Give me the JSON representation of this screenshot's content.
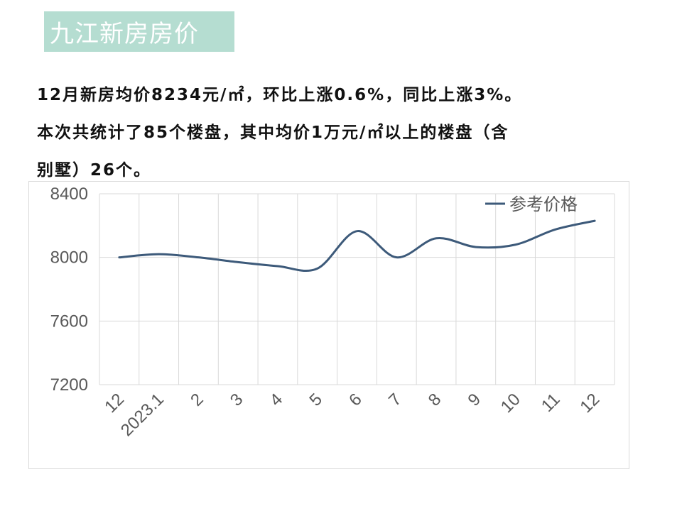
{
  "header": {
    "title": "九江新房房价"
  },
  "summary": {
    "line1": "12月新房均价8234元/㎡，环比上涨0.6%，同比上涨3%。",
    "line2": "本次共统计了85个楼盘，其中均价1万元/㎡以上的楼盘（含",
    "line3": "别墅）26个。"
  },
  "chart_data": {
    "type": "line",
    "categories": [
      "12",
      "2023.1",
      "2",
      "3",
      "4",
      "5",
      "6",
      "7",
      "8",
      "9",
      "10",
      "11",
      "12"
    ],
    "series": [
      {
        "name": "参考价格",
        "color": "#3d5a7a",
        "values": [
          8000,
          8020,
          8000,
          7970,
          7945,
          7930,
          8165,
          8000,
          8120,
          8065,
          8080,
          8175,
          8230
        ]
      }
    ],
    "ylim": [
      7200,
      8400
    ],
    "yticks": [
      "7200",
      "7600",
      "8000",
      "8400"
    ],
    "grid": true,
    "legend": "top-right"
  }
}
